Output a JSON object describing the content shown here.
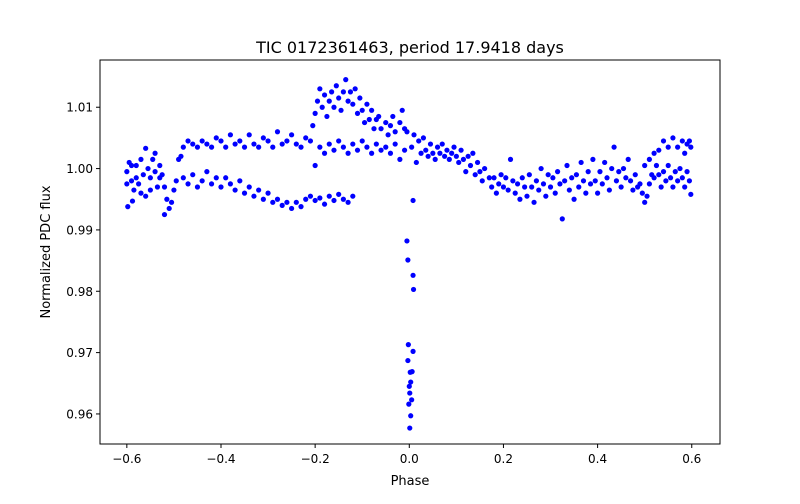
{
  "chart_data": {
    "type": "scatter",
    "title": "TIC 0172361463, period 17.9418 days",
    "xlabel": "Phase",
    "ylabel": "Normalized PDC flux",
    "xlim": [
      -0.657,
      0.66
    ],
    "ylim": [
      0.9551,
      1.0177
    ],
    "xticks": [
      -0.6,
      -0.4,
      -0.2,
      0.0,
      0.2,
      0.4,
      0.6
    ],
    "xtick_labels": [
      "−0.6",
      "−0.4",
      "−0.2",
      "0.0",
      "0.2",
      "0.4",
      "0.6"
    ],
    "yticks": [
      0.96,
      0.97,
      0.98,
      0.99,
      1.0,
      1.01
    ],
    "ytick_labels": [
      "0.96",
      "0.97",
      "0.98",
      "0.99",
      "1.00",
      "1.01"
    ],
    "grid": false,
    "marker_color": "#0000ff",
    "points": [
      [
        -0.6,
        0.9995
      ],
      [
        -0.595,
        1.001
      ],
      [
        -0.59,
        0.998
      ],
      [
        -0.585,
        0.9965
      ],
      [
        -0.58,
        1.0005
      ],
      [
        -0.575,
        0.9975
      ],
      [
        -0.57,
        1.0015
      ],
      [
        -0.565,
        0.999
      ],
      [
        -0.56,
        0.9955
      ],
      [
        -0.555,
        1.0
      ],
      [
        -0.55,
        0.9985
      ],
      [
        -0.545,
        1.0015
      ],
      [
        -0.54,
        0.9995
      ],
      [
        -0.535,
        0.997
      ],
      [
        -0.53,
        1.0005
      ],
      [
        -0.525,
        0.999
      ],
      [
        -0.52,
        0.997
      ],
      [
        -0.515,
        0.995
      ],
      [
        -0.51,
        0.9935
      ],
      [
        -0.505,
        0.9945
      ],
      [
        -0.5,
        0.9965
      ],
      [
        -0.495,
        0.998
      ],
      [
        -0.6,
        0.9975
      ],
      [
        -0.59,
        1.0005
      ],
      [
        -0.58,
        0.9985
      ],
      [
        -0.57,
        0.996
      ],
      [
        -0.56,
        1.0033
      ],
      [
        -0.55,
        0.9965
      ],
      [
        -0.54,
        1.0025
      ],
      [
        -0.53,
        0.9985
      ],
      [
        -0.52,
        0.9925
      ],
      [
        -0.598,
        0.9938
      ],
      [
        -0.588,
        0.9947
      ],
      [
        -0.49,
        1.0015
      ],
      [
        -0.485,
        1.002
      ],
      [
        -0.48,
        1.0035
      ],
      [
        -0.47,
        1.0045
      ],
      [
        -0.46,
        1.004
      ],
      [
        -0.45,
        1.0035
      ],
      [
        -0.44,
        1.0045
      ],
      [
        -0.43,
        1.004
      ],
      [
        -0.42,
        1.0035
      ],
      [
        -0.41,
        1.005
      ],
      [
        -0.4,
        1.0045
      ],
      [
        -0.39,
        1.0035
      ],
      [
        -0.38,
        1.0055
      ],
      [
        -0.37,
        1.004
      ],
      [
        -0.36,
        1.0045
      ],
      [
        -0.35,
        1.0035
      ],
      [
        -0.34,
        1.0055
      ],
      [
        -0.33,
        1.004
      ],
      [
        -0.32,
        1.0035
      ],
      [
        -0.31,
        1.005
      ],
      [
        -0.3,
        1.0045
      ],
      [
        -0.29,
        1.0035
      ],
      [
        -0.28,
        1.006
      ],
      [
        -0.27,
        1.004
      ],
      [
        -0.26,
        1.0045
      ],
      [
        -0.25,
        1.0055
      ],
      [
        -0.24,
        1.004
      ],
      [
        -0.23,
        1.0035
      ],
      [
        -0.22,
        1.005
      ],
      [
        -0.21,
        1.0045
      ],
      [
        -0.48,
        0.9985
      ],
      [
        -0.47,
        0.9975
      ],
      [
        -0.46,
        0.999
      ],
      [
        -0.45,
        0.997
      ],
      [
        -0.44,
        0.998
      ],
      [
        -0.43,
        0.9995
      ],
      [
        -0.42,
        0.9975
      ],
      [
        -0.41,
        0.9985
      ],
      [
        -0.4,
        0.997
      ],
      [
        -0.39,
        0.9985
      ],
      [
        -0.38,
        0.9975
      ],
      [
        -0.37,
        0.9965
      ],
      [
        -0.36,
        0.998
      ],
      [
        -0.35,
        0.996
      ],
      [
        -0.34,
        0.997
      ],
      [
        -0.33,
        0.9955
      ],
      [
        -0.32,
        0.9965
      ],
      [
        -0.31,
        0.995
      ],
      [
        -0.3,
        0.996
      ],
      [
        -0.29,
        0.9945
      ],
      [
        -0.28,
        0.995
      ],
      [
        -0.27,
        0.994
      ],
      [
        -0.26,
        0.9945
      ],
      [
        -0.25,
        0.9935
      ],
      [
        -0.24,
        0.9945
      ],
      [
        -0.23,
        0.9938
      ],
      [
        -0.22,
        0.995
      ],
      [
        -0.21,
        0.9955
      ],
      [
        -0.2,
        0.9948
      ],
      [
        -0.19,
        0.9952
      ],
      [
        -0.18,
        0.9942
      ],
      [
        -0.17,
        0.9955
      ],
      [
        -0.16,
        0.9948
      ],
      [
        -0.15,
        0.9958
      ],
      [
        -0.14,
        0.995
      ],
      [
        -0.13,
        0.9945
      ],
      [
        -0.12,
        0.9955
      ],
      [
        -0.2,
        1.0005
      ],
      [
        -0.19,
        1.0035
      ],
      [
        -0.18,
        1.0025
      ],
      [
        -0.17,
        1.004
      ],
      [
        -0.16,
        1.003
      ],
      [
        -0.15,
        1.0045
      ],
      [
        -0.14,
        1.0035
      ],
      [
        -0.13,
        1.0025
      ],
      [
        -0.12,
        1.004
      ],
      [
        -0.11,
        1.003
      ],
      [
        -0.1,
        1.0045
      ],
      [
        -0.09,
        1.0035
      ],
      [
        -0.08,
        1.0025
      ],
      [
        -0.07,
        1.004
      ],
      [
        -0.06,
        1.003
      ],
      [
        -0.05,
        1.0035
      ],
      [
        -0.04,
        1.0025
      ],
      [
        -0.03,
        1.004
      ],
      [
        -0.02,
        1.0015
      ],
      [
        -0.01,
        1.003
      ],
      [
        -0.205,
        1.007
      ],
      [
        -0.2,
        1.009
      ],
      [
        -0.195,
        1.011
      ],
      [
        -0.19,
        1.013
      ],
      [
        -0.185,
        1.01
      ],
      [
        -0.18,
        1.012
      ],
      [
        -0.175,
        1.0085
      ],
      [
        -0.17,
        1.011
      ],
      [
        -0.165,
        1.0125
      ],
      [
        -0.16,
        1.01
      ],
      [
        -0.155,
        1.0135
      ],
      [
        -0.15,
        1.0115
      ],
      [
        -0.145,
        1.0095
      ],
      [
        -0.14,
        1.0125
      ],
      [
        -0.135,
        1.0145
      ],
      [
        -0.13,
        1.011
      ],
      [
        -0.125,
        1.0125
      ],
      [
        -0.12,
        1.0105
      ],
      [
        -0.115,
        1.013
      ],
      [
        -0.11,
        1.009
      ],
      [
        -0.105,
        1.0115
      ],
      [
        -0.1,
        1.0095
      ],
      [
        -0.095,
        1.0075
      ],
      [
        -0.09,
        1.0105
      ],
      [
        -0.085,
        1.008
      ],
      [
        -0.08,
        1.0095
      ],
      [
        -0.075,
        1.0065
      ],
      [
        -0.07,
        1.008
      ],
      [
        -0.065,
        1.0085
      ],
      [
        -0.06,
        1.0065
      ],
      [
        -0.05,
        1.0075
      ],
      [
        -0.045,
        1.0055
      ],
      [
        -0.04,
        1.007
      ],
      [
        -0.035,
        1.0085
      ],
      [
        -0.03,
        1.006
      ],
      [
        -0.02,
        1.0075
      ],
      [
        -0.015,
        1.0095
      ],
      [
        -0.01,
        1.0065
      ],
      [
        -0.005,
        1.006
      ],
      [
        0.005,
        1.0035
      ],
      [
        0.01,
        1.0055
      ],
      [
        0.015,
        1.001
      ],
      [
        0.02,
        1.0045
      ],
      [
        0.025,
        1.0025
      ],
      [
        0.03,
        1.005
      ],
      [
        0.035,
        1.003
      ],
      [
        0.04,
        1.002
      ],
      [
        0.045,
        1.004
      ],
      [
        0.05,
        1.0025
      ],
      [
        0.055,
        1.0015
      ],
      [
        0.06,
        1.0035
      ],
      [
        0.065,
        1.0025
      ],
      [
        0.07,
        1.004
      ],
      [
        0.075,
        1.002
      ],
      [
        0.08,
        1.003
      ],
      [
        0.085,
        1.0015
      ],
      [
        0.09,
        1.0025
      ],
      [
        0.095,
        1.0035
      ],
      [
        0.1,
        1.002
      ],
      [
        0.105,
        1.001
      ],
      [
        0.11,
        1.003
      ],
      [
        0.115,
        1.0015
      ],
      [
        0.12,
        0.9995
      ],
      [
        0.125,
        1.002
      ],
      [
        0.13,
        1.0005
      ],
      [
        0.135,
        1.0025
      ],
      [
        0.14,
        0.999
      ],
      [
        0.145,
        1.001
      ],
      [
        0.15,
        0.9995
      ],
      [
        0.155,
        0.998
      ],
      [
        0.16,
        1.0
      ],
      [
        0.17,
        0.9985
      ],
      [
        0.175,
        0.997
      ],
      [
        0.18,
        0.9985
      ],
      [
        0.185,
        0.996
      ],
      [
        0.19,
        0.9975
      ],
      [
        0.195,
        0.999
      ],
      [
        0.2,
        0.997
      ],
      [
        0.205,
        0.9985
      ],
      [
        0.21,
        0.9965
      ],
      [
        0.215,
        1.0015
      ],
      [
        0.22,
        0.998
      ],
      [
        0.225,
        0.996
      ],
      [
        0.23,
        0.9975
      ],
      [
        0.235,
        0.995
      ],
      [
        0.24,
        0.9985
      ],
      [
        0.245,
        0.997
      ],
      [
        0.25,
        0.9955
      ],
      [
        0.255,
        0.999
      ],
      [
        0.26,
        0.997
      ],
      [
        0.265,
        0.9945
      ],
      [
        0.27,
        0.998
      ],
      [
        0.275,
        0.9965
      ],
      [
        0.28,
        1.0
      ],
      [
        0.285,
        0.9975
      ],
      [
        0.29,
        0.9955
      ],
      [
        0.295,
        0.999
      ],
      [
        0.3,
        0.997
      ],
      [
        0.305,
        0.9985
      ],
      [
        0.31,
        0.996
      ],
      [
        0.315,
        0.9995
      ],
      [
        0.32,
        0.9975
      ],
      [
        0.325,
        0.9918
      ],
      [
        0.33,
        0.998
      ],
      [
        0.335,
        1.0005
      ],
      [
        0.34,
        0.9965
      ],
      [
        0.345,
        0.9985
      ],
      [
        0.35,
        0.995
      ],
      [
        0.355,
        0.999
      ],
      [
        0.36,
        0.997
      ],
      [
        0.365,
        1.001
      ],
      [
        0.37,
        0.998
      ],
      [
        0.375,
        0.996
      ],
      [
        0.38,
        0.9995
      ],
      [
        0.385,
        0.9975
      ],
      [
        0.39,
        1.0015
      ],
      [
        0.395,
        0.998
      ],
      [
        0.4,
        0.996
      ],
      [
        0.405,
        0.9995
      ],
      [
        0.41,
        0.9975
      ],
      [
        0.415,
        1.001
      ],
      [
        0.42,
        0.9985
      ],
      [
        0.425,
        0.9965
      ],
      [
        0.43,
        1.0
      ],
      [
        0.435,
        1.0035
      ],
      [
        0.44,
        0.998
      ],
      [
        0.445,
        0.9995
      ],
      [
        0.45,
        0.997
      ],
      [
        0.455,
        1.0
      ],
      [
        0.46,
        0.9985
      ],
      [
        0.465,
        1.0015
      ],
      [
        0.47,
        0.998
      ],
      [
        0.475,
        0.9965
      ],
      [
        0.48,
        0.999
      ],
      [
        0.485,
        0.997
      ],
      [
        0.49,
        0.9975
      ],
      [
        0.495,
        0.996
      ],
      [
        0.5,
        0.9945
      ],
      [
        0.505,
        0.9955
      ],
      [
        0.51,
        0.9975
      ],
      [
        0.515,
        0.999
      ],
      [
        0.52,
        0.9985
      ],
      [
        0.525,
        1.0005
      ],
      [
        0.53,
        0.999
      ],
      [
        0.535,
        0.997
      ],
      [
        0.54,
        0.9995
      ],
      [
        0.545,
        0.998
      ],
      [
        0.55,
        1.0005
      ],
      [
        0.555,
        0.9985
      ],
      [
        0.56,
        0.997
      ],
      [
        0.565,
        0.9995
      ],
      [
        0.57,
        0.998
      ],
      [
        0.575,
        1.0
      ],
      [
        0.58,
        0.9985
      ],
      [
        0.585,
        0.997
      ],
      [
        0.59,
        0.9995
      ],
      [
        0.595,
        0.998
      ],
      [
        0.598,
        0.9958
      ],
      [
        0.5,
        1.0005
      ],
      [
        0.51,
        1.0015
      ],
      [
        0.52,
        1.0025
      ],
      [
        0.53,
        1.003
      ],
      [
        0.54,
        1.0045
      ],
      [
        0.55,
        1.0035
      ],
      [
        0.56,
        1.005
      ],
      [
        0.57,
        1.0035
      ],
      [
        0.58,
        1.0045
      ],
      [
        0.585,
        1.0025
      ],
      [
        0.59,
        1.004
      ],
      [
        0.595,
        1.0045
      ],
      [
        0.598,
        1.0035
      ],
      [
        0.008,
        0.9948
      ],
      [
        -0.005,
        0.9882
      ],
      [
        -0.003,
        0.9851
      ],
      [
        0.008,
        0.9826
      ],
      [
        0.009,
        0.9803
      ],
      [
        -0.002,
        0.9713
      ],
      [
        0.008,
        0.9702
      ],
      [
        -0.003,
        0.9687
      ],
      [
        0.002,
        0.9668
      ],
      [
        0.006,
        0.9669
      ],
      [
        0.0,
        0.9645
      ],
      [
        0.003,
        0.9652
      ],
      [
        0.001,
        0.9634
      ],
      [
        -0.001,
        0.9616
      ],
      [
        0.005,
        0.9623
      ],
      [
        0.003,
        0.9597
      ],
      [
        0.001,
        0.9577
      ]
    ]
  }
}
